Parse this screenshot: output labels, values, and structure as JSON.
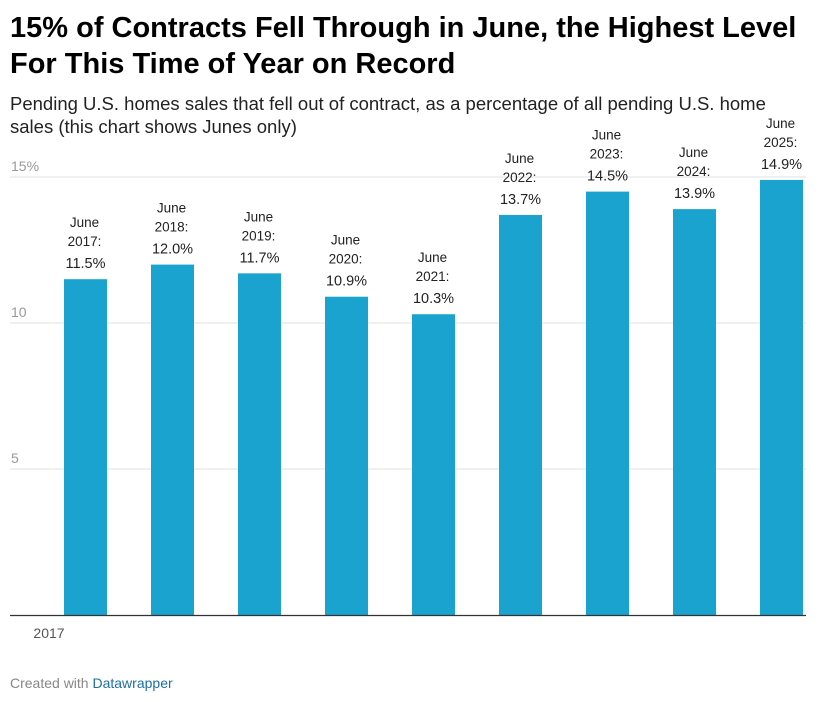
{
  "header": {
    "title": "15% of Contracts Fell Through in June, the Highest Level For This Time of Year on Record",
    "subtitle": "Pending U.S. homes sales that fell out of contract, as a percentage of all pending U.S. home sales (this chart shows Junes only)"
  },
  "footer": {
    "created_with": "Created with",
    "brand": "Datawrapper"
  },
  "colors": {
    "bar": "#1aa3cf",
    "grid": "#e0e0e0",
    "axis": "#333333"
  },
  "chart_data": {
    "type": "bar",
    "categories": [
      "2017",
      "2018",
      "2019",
      "2020",
      "2021",
      "2022",
      "2023",
      "2024",
      "2025"
    ],
    "values": [
      11.5,
      12.0,
      11.7,
      10.9,
      10.3,
      13.7,
      14.5,
      13.9,
      14.9
    ],
    "labels": [
      [
        "June",
        "2017:"
      ],
      [
        "June",
        "2018:"
      ],
      [
        "June",
        "2019:"
      ],
      [
        "June",
        "2020:"
      ],
      [
        "June",
        "2021:"
      ],
      [
        "June",
        "2022:"
      ],
      [
        "June",
        "2023:"
      ],
      [
        "June",
        "2024:"
      ],
      [
        "June",
        "2025:"
      ]
    ],
    "value_labels": [
      "11.5%",
      "12.0%",
      "11.7%",
      "10.9%",
      "10.3%",
      "13.7%",
      "14.5%",
      "13.9%",
      "14.9%"
    ],
    "y_ticks": [
      {
        "value": 5,
        "label": "5"
      },
      {
        "value": 10,
        "label": "10"
      },
      {
        "value": 15,
        "label": "15%"
      }
    ],
    "x_tick_labels": [
      "2017"
    ],
    "ylim": [
      0,
      15
    ],
    "title": "15% of Contracts Fell Through in June, the Highest Level For This Time of Year on Record",
    "xlabel": "",
    "ylabel": ""
  }
}
